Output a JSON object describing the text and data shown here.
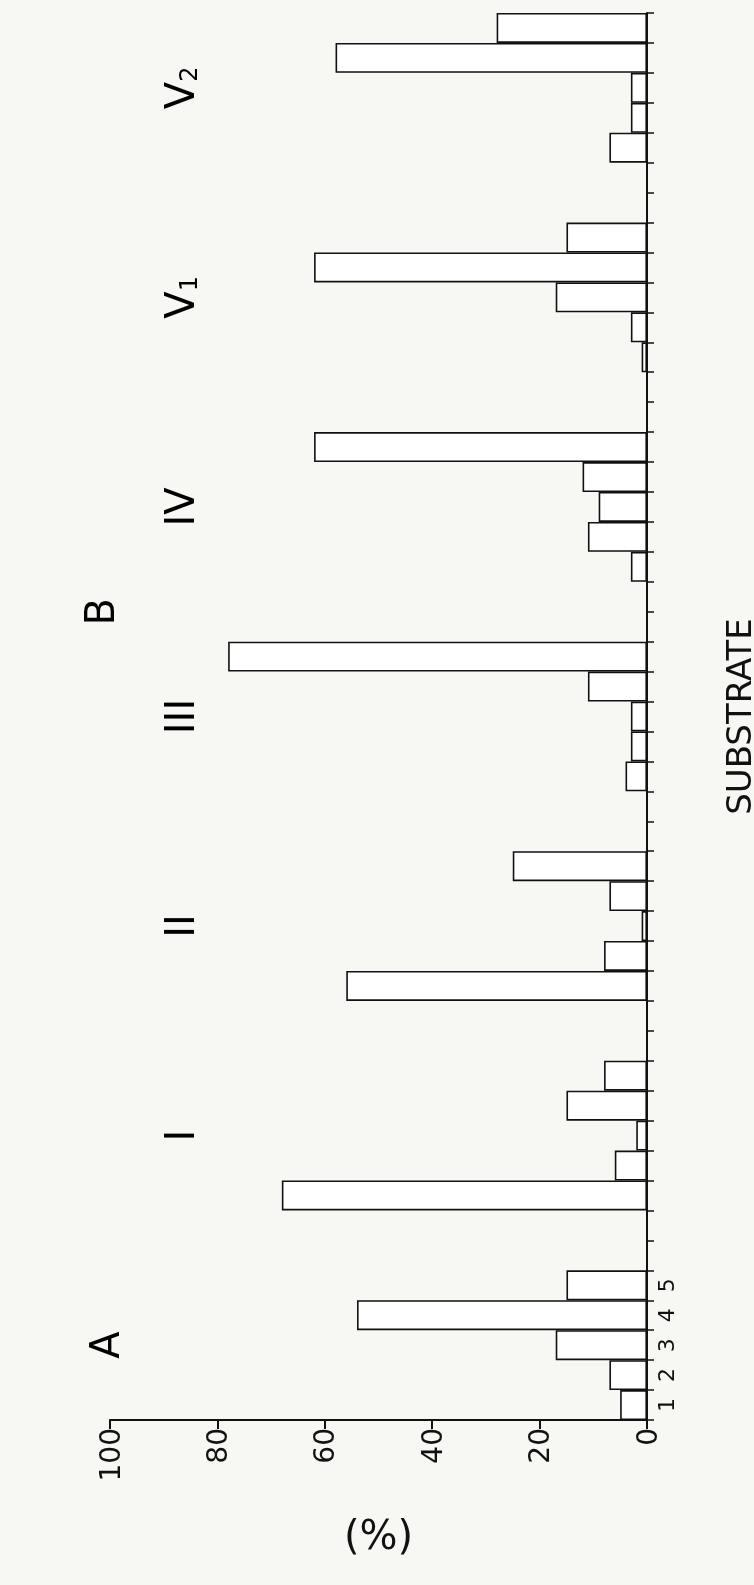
{
  "chart_data": {
    "type": "bar",
    "orientation": "horizontal",
    "categories": [
      null,
      null,
      null,
      null,
      null,
      null,
      null,
      null,
      null,
      null,
      null,
      null,
      null,
      null,
      null,
      null,
      null,
      null,
      null,
      null,
      null,
      null,
      null,
      null,
      null,
      null,
      null,
      null,
      null,
      null,
      null,
      null,
      null,
      null,
      null,
      null,
      null,
      null,
      null,
      null,
      null,
      null,
      "5",
      "4",
      "3",
      "2",
      "1"
    ],
    "values": [
      28,
      58,
      3,
      3,
      7,
      null,
      null,
      15,
      62,
      17,
      3,
      1,
      null,
      null,
      62,
      12,
      9,
      11,
      3,
      null,
      null,
      78,
      11,
      3,
      3,
      4,
      null,
      null,
      25,
      7,
      1,
      8,
      56,
      null,
      null,
      8,
      15,
      2,
      6,
      68,
      null,
      null,
      15,
      54,
      17,
      7,
      5
    ],
    "color": "#ffffff",
    "xlabel": "(%)",
    "ylabel": "SUBSTRATE",
    "xlim": [
      100,
      0
    ],
    "xticks": [
      100,
      80,
      60,
      40,
      20,
      0
    ],
    "annotations": [
      "V$_{2}$",
      "V$_{1}$",
      "IV",
      "III",
      "II",
      "I",
      "B",
      "A"
    ]
  }
}
